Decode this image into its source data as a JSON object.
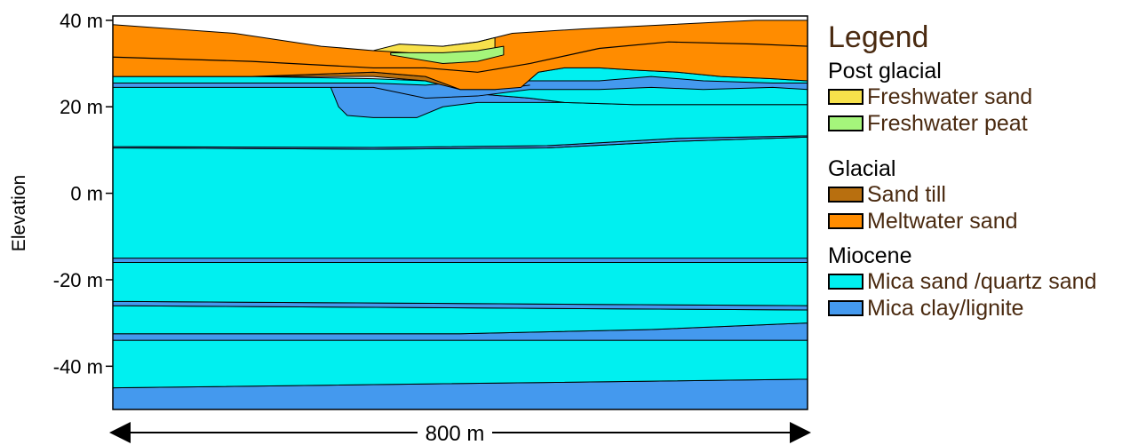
{
  "chart": {
    "ylabel": "Elevation",
    "y_ticks": [
      {
        "value": 40,
        "label": "40 m"
      },
      {
        "value": 20,
        "label": "20 m"
      },
      {
        "value": 0,
        "label": "0 m"
      },
      {
        "value": -20,
        "label": "-20 m"
      },
      {
        "value": -40,
        "label": "-40 m"
      }
    ],
    "ylim": [
      -50,
      41
    ],
    "xlim": [
      0,
      800
    ],
    "scale_label": "800 m"
  },
  "legend": {
    "title": "Legend",
    "groups": [
      {
        "title": "Post glacial",
        "items": [
          {
            "label": "Freshwater sand",
            "color": "#f7e14b"
          },
          {
            "label": "Freshwater peat",
            "color": "#a5f57b"
          }
        ]
      },
      {
        "title": "Glacial",
        "items": [
          {
            "label": "Sand till",
            "color": "#b86f0f"
          },
          {
            "label": "Meltwater sand",
            "color": "#ff8c00"
          }
        ]
      },
      {
        "title": "Miocene",
        "items": [
          {
            "label": "Mica sand /quartz sand",
            "color": "#00f0f0"
          },
          {
            "label": "Mica clay/lignite",
            "color": "#4499ee"
          }
        ]
      }
    ]
  },
  "chart_data": {
    "type": "cross-section",
    "x_unit": "m",
    "y_unit": "m",
    "xlim": [
      0,
      800
    ],
    "ylim": [
      -50,
      41
    ],
    "layers": [
      {
        "unit": "Mica clay/lignite",
        "top": [
          [
            0,
            -45
          ],
          [
            800,
            -43
          ]
        ],
        "bottom": [
          [
            0,
            -50
          ],
          [
            800,
            -50
          ]
        ]
      },
      {
        "unit": "Mica sand /quartz sand",
        "top": [
          [
            0,
            -34
          ],
          [
            800,
            -34
          ]
        ],
        "bottom": [
          [
            0,
            -45
          ],
          [
            800,
            -43
          ]
        ]
      },
      {
        "unit": "Mica clay/lignite",
        "top": [
          [
            0,
            -32.5
          ],
          [
            400,
            -32.5
          ],
          [
            620,
            -31.5
          ],
          [
            800,
            -30
          ]
        ],
        "bottom": [
          [
            0,
            -34
          ],
          [
            800,
            -34
          ]
        ]
      },
      {
        "unit": "Mica sand /quartz sand",
        "top": [
          [
            0,
            -26
          ],
          [
            800,
            -27
          ]
        ],
        "bottom": [
          [
            0,
            -32.5
          ],
          [
            400,
            -32.5
          ],
          [
            620,
            -31.5
          ],
          [
            800,
            -30
          ]
        ]
      },
      {
        "unit": "Mica clay/lignite",
        "top": [
          [
            0,
            -25
          ],
          [
            800,
            -26
          ]
        ],
        "bottom": [
          [
            0,
            -26
          ],
          [
            800,
            -27
          ]
        ]
      },
      {
        "unit": "Mica sand /quartz sand",
        "top": [
          [
            0,
            -16
          ],
          [
            800,
            -16
          ]
        ],
        "bottom": [
          [
            0,
            -25
          ],
          [
            800,
            -26
          ]
        ]
      },
      {
        "unit": "Mica clay/lignite",
        "top": [
          [
            0,
            -15
          ],
          [
            800,
            -15
          ]
        ],
        "bottom": [
          [
            0,
            -16
          ],
          [
            800,
            -16
          ]
        ]
      },
      {
        "unit": "Mica sand /quartz sand",
        "top": [
          [
            0,
            10.5
          ],
          [
            300,
            10.2
          ],
          [
            500,
            10.5
          ],
          [
            650,
            12
          ],
          [
            800,
            13
          ]
        ],
        "bottom": [
          [
            0,
            -15
          ],
          [
            800,
            -15
          ]
        ]
      },
      {
        "unit": "Mica clay/lignite",
        "top": [
          [
            0,
            10.8
          ],
          [
            300,
            10.6
          ],
          [
            500,
            11
          ],
          [
            650,
            12.7
          ],
          [
            800,
            13.3
          ]
        ],
        "bottom": [
          [
            0,
            10.5
          ],
          [
            300,
            10.2
          ],
          [
            500,
            10.5
          ],
          [
            650,
            12
          ],
          [
            800,
            13
          ]
        ]
      },
      {
        "unit": "Mica sand /quartz sand",
        "top": [
          [
            0,
            25
          ],
          [
            800,
            25
          ]
        ],
        "bottom": [
          [
            0,
            10.8
          ],
          [
            300,
            10.6
          ],
          [
            500,
            11
          ],
          [
            650,
            12.7
          ],
          [
            800,
            13.3
          ]
        ]
      },
      {
        "unit": "Mica clay/lignite",
        "top": [
          [
            0,
            25
          ],
          [
            260,
            25
          ],
          [
            360,
            24
          ],
          [
            420,
            23
          ],
          [
            480,
            22
          ],
          [
            520,
            21
          ],
          [
            600,
            20.5
          ],
          [
            800,
            20.5
          ]
        ],
        "bottom": [
          [
            0,
            25
          ],
          [
            250,
            25
          ],
          [
            260,
            20
          ],
          [
            270,
            18
          ],
          [
            300,
            17.5
          ],
          [
            350,
            17.5
          ],
          [
            380,
            20
          ],
          [
            420,
            21
          ],
          [
            480,
            21
          ],
          [
            560,
            21
          ],
          [
            600,
            20.5
          ],
          [
            800,
            20.5
          ]
        ]
      },
      {
        "unit": "Mica sand /quartz sand",
        "top": [
          [
            0,
            27
          ],
          [
            160,
            27
          ],
          [
            300,
            26.5
          ],
          [
            360,
            26
          ],
          [
            400,
            24
          ],
          [
            440,
            24
          ],
          [
            470,
            24.5
          ],
          [
            490,
            28
          ],
          [
            520,
            29
          ],
          [
            560,
            29
          ],
          [
            600,
            28.5
          ],
          [
            650,
            28
          ],
          [
            700,
            27
          ],
          [
            760,
            26.5
          ],
          [
            800,
            26
          ]
        ],
        "bottom": [
          [
            0,
            25
          ],
          [
            260,
            25
          ],
          [
            360,
            24
          ],
          [
            420,
            23
          ],
          [
            480,
            22
          ],
          [
            520,
            21
          ],
          [
            600,
            20.5
          ],
          [
            800,
            20.5
          ]
        ]
      },
      {
        "unit": "Mica clay/lignite",
        "top": [
          [
            0,
            25.5
          ],
          [
            300,
            25.5
          ],
          [
            360,
            25
          ],
          [
            420,
            26
          ],
          [
            480,
            26
          ],
          [
            560,
            26
          ],
          [
            620,
            27
          ],
          [
            680,
            26
          ],
          [
            760,
            25.5
          ],
          [
            800,
            25.5
          ]
        ],
        "bottom": [
          [
            0,
            24.5
          ],
          [
            300,
            24.5
          ],
          [
            360,
            22
          ],
          [
            420,
            22.5
          ],
          [
            480,
            24
          ],
          [
            560,
            24
          ],
          [
            620,
            24.5
          ],
          [
            680,
            24
          ],
          [
            760,
            24.5
          ],
          [
            800,
            24
          ]
        ]
      },
      {
        "unit": "Sand till",
        "top": [
          [
            0,
            27
          ],
          [
            160,
            27
          ],
          [
            300,
            28
          ],
          [
            360,
            27
          ],
          [
            400,
            24
          ],
          [
            440,
            24
          ],
          [
            480,
            25
          ]
        ],
        "bottom": [
          [
            300,
            27
          ],
          [
            360,
            26
          ],
          [
            400,
            24
          ],
          [
            440,
            24
          ],
          [
            480,
            25
          ]
        ]
      },
      {
        "unit": "Meltwater sand",
        "top": [
          [
            0,
            39
          ],
          [
            140,
            37
          ],
          [
            240,
            34
          ],
          [
            300,
            33
          ],
          [
            330,
            33.5
          ],
          [
            380,
            34
          ],
          [
            420,
            35
          ],
          [
            460,
            37
          ],
          [
            540,
            38
          ],
          [
            640,
            39
          ],
          [
            740,
            40
          ],
          [
            800,
            40
          ]
        ],
        "bottom": [
          [
            0,
            27
          ],
          [
            160,
            27
          ],
          [
            300,
            28
          ],
          [
            360,
            27
          ],
          [
            400,
            24
          ],
          [
            440,
            24
          ],
          [
            470,
            24.5
          ],
          [
            490,
            28
          ],
          [
            520,
            29
          ],
          [
            560,
            29
          ],
          [
            600,
            28.5
          ],
          [
            650,
            28
          ],
          [
            700,
            27
          ],
          [
            760,
            26.5
          ],
          [
            800,
            26
          ]
        ]
      },
      {
        "unit": "Freshwater sand",
        "top": [
          [
            300,
            33
          ],
          [
            330,
            34.5
          ],
          [
            380,
            34
          ],
          [
            420,
            35
          ],
          [
            440,
            36
          ]
        ],
        "bottom": [
          [
            300,
            33
          ],
          [
            340,
            32.5
          ],
          [
            380,
            32
          ],
          [
            420,
            32.5
          ],
          [
            440,
            33
          ]
        ]
      },
      {
        "unit": "Freshwater peat",
        "top": [
          [
            320,
            32.5
          ],
          [
            380,
            32.5
          ],
          [
            420,
            33
          ],
          [
            450,
            34
          ]
        ],
        "bottom": [
          [
            320,
            32
          ],
          [
            380,
            30
          ],
          [
            420,
            30.5
          ],
          [
            450,
            32
          ]
        ]
      }
    ],
    "boundaries": [
      [
        [
          0,
          31.5
        ],
        [
          160,
          30.5
        ],
        [
          300,
          29
        ],
        [
          360,
          29
        ],
        [
          420,
          28
        ],
        [
          480,
          30
        ]
      ],
      [
        [
          480,
          30
        ],
        [
          560,
          33.5
        ],
        [
          640,
          35
        ],
        [
          740,
          34.5
        ],
        [
          800,
          34
        ]
      ]
    ]
  }
}
